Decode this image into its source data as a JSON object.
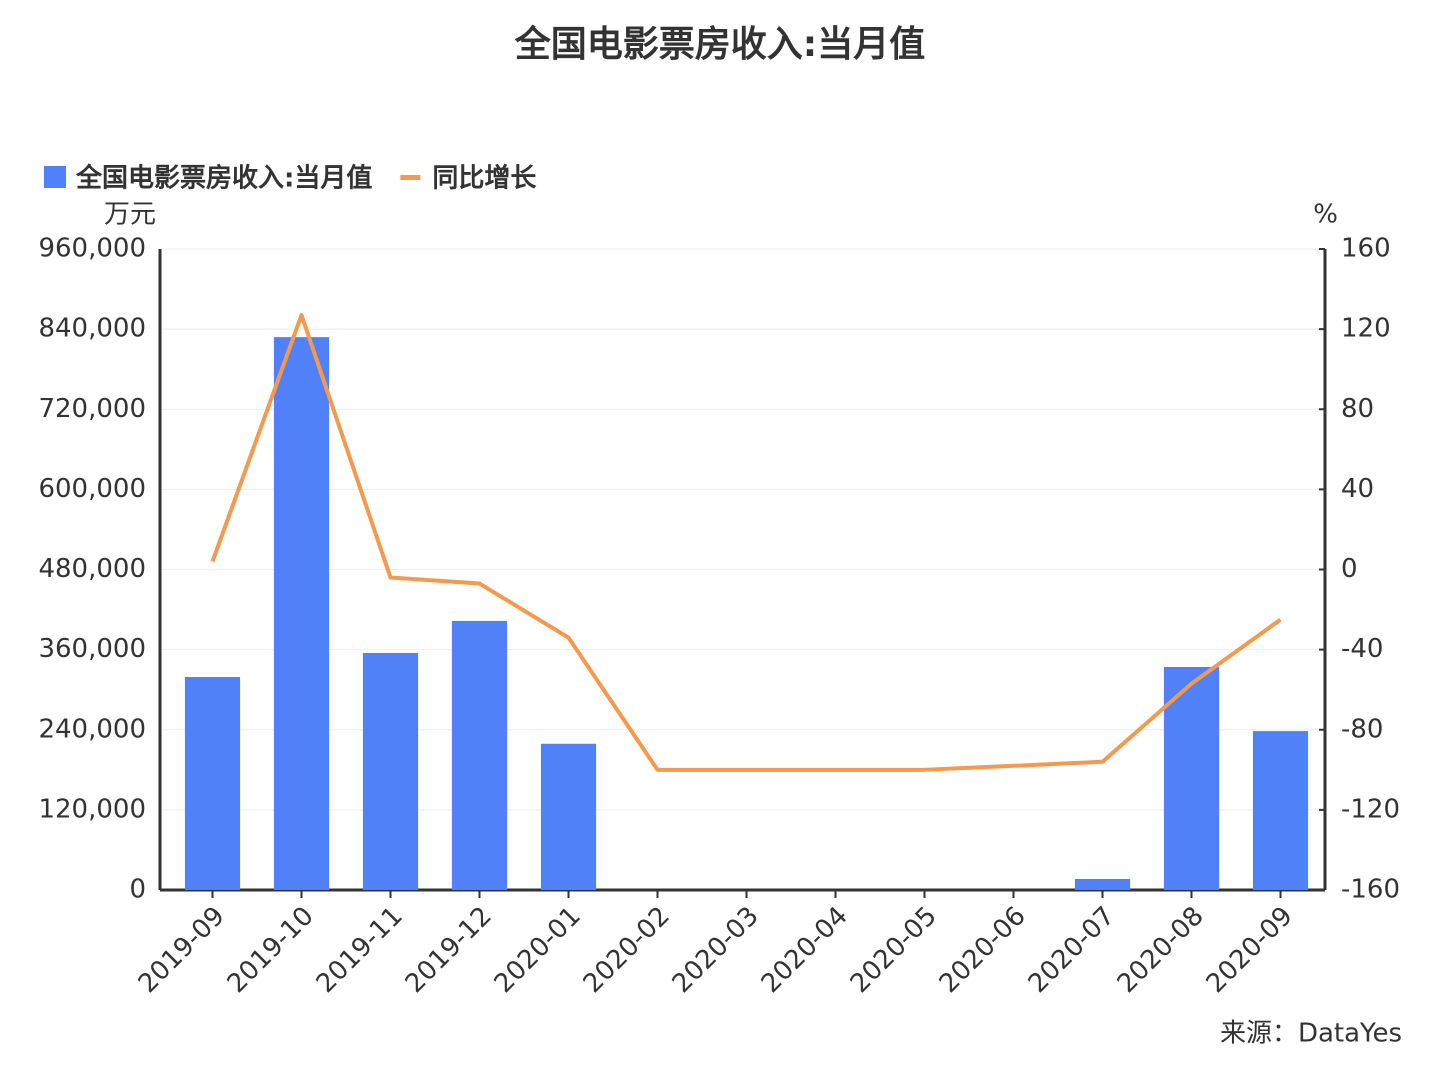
{
  "chart_data": {
    "type": "bar_line",
    "title": "全国电影票房收入:当月值",
    "y_label": "万元",
    "y2_label": "%",
    "source": "来源：DataYes",
    "categories": [
      "2019-09",
      "2019-10",
      "2019-11",
      "2019-12",
      "2020-01",
      "2020-02",
      "2020-03",
      "2020-04",
      "2020-05",
      "2020-06",
      "2020-07",
      "2020-08",
      "2020-09"
    ],
    "series": [
      {
        "name": "全国电影票房收入:当月值",
        "type": "bar",
        "color": "#5081f9",
        "values": [
          319000,
          828000,
          355000,
          403000,
          219000,
          0,
          0,
          0,
          0,
          0,
          16500,
          334000,
          238000
        ]
      },
      {
        "name": "同比增长",
        "type": "line",
        "axis": "y2",
        "color": "#f5994e",
        "values": [
          4,
          127,
          -4,
          -7,
          -34,
          -100,
          -100,
          -100,
          -100,
          -98,
          -96,
          -57,
          -25
        ]
      }
    ],
    "ylim": [
      0,
      960000
    ],
    "yticks": [
      0,
      {
        "value": 120000,
        "label": "120,000"
      },
      {
        "value": 240000,
        "label": "240,000"
      },
      {
        "value": 360000,
        "label": "360,000"
      },
      {
        "value": 480000,
        "label": "480,000"
      },
      {
        "value": 600000,
        "label": "600,000"
      },
      {
        "value": 720000,
        "label": "720,000"
      },
      {
        "value": 840000,
        "label": "840,000"
      },
      {
        "value": 960000,
        "label": "960,000"
      }
    ],
    "y2lim": [
      -160,
      160
    ],
    "y2ticks": [
      -160,
      -120,
      -80,
      -40,
      0,
      40,
      80,
      120,
      160
    ],
    "grid": true,
    "legend": "top-left"
  }
}
